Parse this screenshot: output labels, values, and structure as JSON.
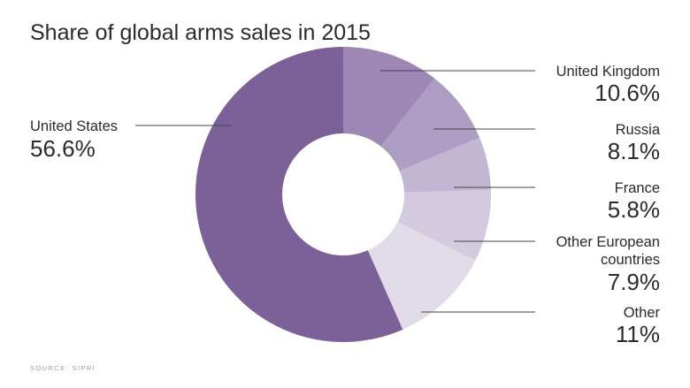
{
  "chart_data": {
    "type": "pie",
    "donut": true,
    "title": "Share of global arms sales in 2015",
    "source": "SOURCE: SIPRI",
    "unit": "%",
    "slices": [
      {
        "label": "United Kingdom",
        "label_lines": [
          "United Kingdom"
        ],
        "value": 10.6,
        "value_text": "10.6%",
        "color": "#9d88b5"
      },
      {
        "label": "Russia",
        "label_lines": [
          "Russia"
        ],
        "value": 8.1,
        "value_text": "8.1%",
        "color": "#ae9dc3"
      },
      {
        "label": "France",
        "label_lines": [
          "France"
        ],
        "value": 5.8,
        "value_text": "5.8%",
        "color": "#c2b6d3"
      },
      {
        "label": "Other European countries",
        "label_lines": [
          "Other European",
          "countries"
        ],
        "value": 7.9,
        "value_text": "7.9%",
        "color": "#d3cadf"
      },
      {
        "label": "Other",
        "label_lines": [
          "Other"
        ],
        "value": 11,
        "value_text": "11%",
        "color": "#e1dbe8"
      },
      {
        "label": "United States",
        "label_lines": [
          "United States"
        ],
        "value": 56.6,
        "value_text": "56.6%",
        "color": "#7c6098"
      }
    ]
  }
}
